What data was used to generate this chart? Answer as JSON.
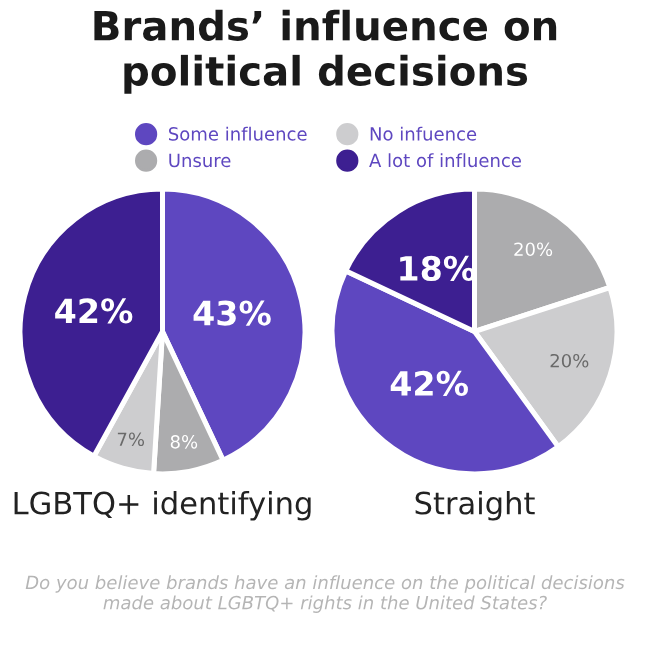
{
  "chart_data": [
    {
      "type": "pie",
      "title": "Brands’ influence on political decisions",
      "xlabel": "LGBTQ+ identifying",
      "legend": "top",
      "categories": [
        "Some influence",
        "Unsure",
        "No infuence",
        "A lot of influence"
      ],
      "values": [
        43,
        8,
        7,
        42
      ],
      "colors": [
        "#5e47c0",
        "#acacae",
        "#cdcdcf",
        "#3d1f91"
      ],
      "value_labels": [
        "43%",
        "8%",
        "7%",
        "42%"
      ],
      "annotations": [
        "Do you believe brands have an influence on the political decisions made about LGBTQ+ rights in the United States?"
      ]
    },
    {
      "type": "pie",
      "xlabel": "Straight",
      "categories": [
        null,
        null,
        null,
        null
      ],
      "values": [
        20,
        20,
        42,
        18
      ],
      "colors": [
        "#acacae",
        "#cdcdcf",
        "#5e47c0",
        "#3d1f91"
      ],
      "value_labels": [
        "20%",
        "20%",
        "42%",
        "18%"
      ]
    }
  ]
}
